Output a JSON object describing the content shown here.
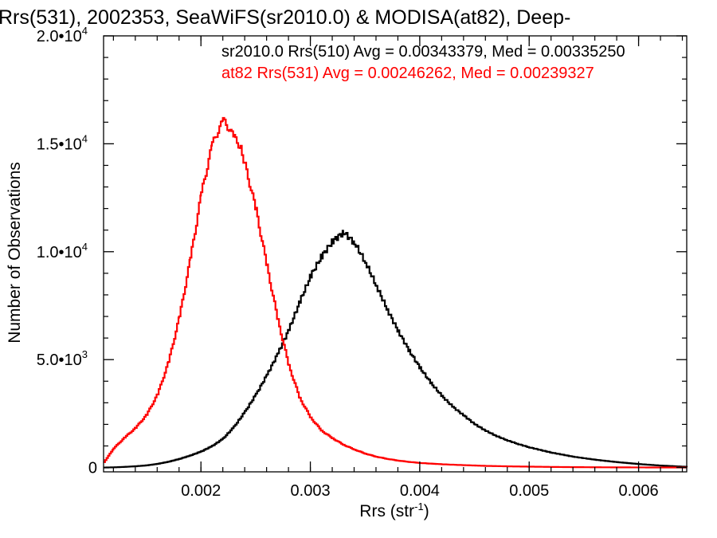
{
  "chart_data": {
    "type": "line",
    "title": "Rrs(531), 2002353, SeaWiFS(sr2010.0) & MODISA(at82), Deep-",
    "xlabel": "Rrs (str",
    "xlabel_sup": "-1",
    "xlabel_suffix": ")",
    "ylabel": "Number of Observations",
    "xlim": [
      0.00111,
      0.00644
    ],
    "ylim": [
      -200,
      20000
    ],
    "x_ticks": [
      {
        "value": 0.002,
        "label": "0.002"
      },
      {
        "value": 0.003,
        "label": "0.003"
      },
      {
        "value": 0.004,
        "label": "0.004"
      },
      {
        "value": 0.005,
        "label": "0.005"
      },
      {
        "value": 0.006,
        "label": "0.006"
      }
    ],
    "y_ticks": [
      {
        "value": 0,
        "base": "0",
        "exp": ""
      },
      {
        "value": 5000,
        "base": "5.0•10",
        "exp": "3"
      },
      {
        "value": 10000,
        "base": "1.0•10",
        "exp": "4"
      },
      {
        "value": 15000,
        "base": "1.5•10",
        "exp": "4"
      },
      {
        "value": 20000,
        "base": "2.0•10",
        "exp": "4"
      }
    ],
    "annotations": [
      {
        "text": "sr2010.0 Rrs(510) Avg = 0.00343379, Med = 0.00335250",
        "color": "#000000"
      },
      {
        "text": "at82 Rrs(531) Avg = 0.00246262, Med = 0.00239327",
        "color": "#ff0000"
      }
    ],
    "series": [
      {
        "color": "#000000",
        "x": [
          0.00111,
          0.0012,
          0.0013,
          0.0014,
          0.0015,
          0.0016,
          0.0017,
          0.0018,
          0.0019,
          0.002,
          0.0021,
          0.0022,
          0.0023,
          0.0024,
          0.0025,
          0.0026,
          0.0027,
          0.0028,
          0.0029,
          0.003,
          0.0031,
          0.0032,
          0.0033,
          0.0034,
          0.0035,
          0.0036,
          0.0037,
          0.0038,
          0.0039,
          0.004,
          0.0041,
          0.0042,
          0.0043,
          0.0044,
          0.0045,
          0.0046,
          0.0047,
          0.0048,
          0.0049,
          0.005,
          0.0052,
          0.0054,
          0.0056,
          0.0058,
          0.006,
          0.0062,
          0.00644
        ],
        "values": [
          0,
          10,
          30,
          60,
          100,
          170,
          270,
          400,
          560,
          750,
          1000,
          1350,
          1900,
          2600,
          3400,
          4300,
          5300,
          6400,
          7700,
          8900,
          9800,
          10500,
          10900,
          10400,
          9500,
          8400,
          7300,
          6300,
          5400,
          4600,
          3900,
          3300,
          2800,
          2400,
          2000,
          1700,
          1450,
          1250,
          1080,
          930,
          690,
          500,
          360,
          250,
          160,
          90,
          30
        ]
      },
      {
        "color": "#ff0000",
        "x": [
          0.00111,
          0.0012,
          0.0013,
          0.0014,
          0.0015,
          0.0016,
          0.0017,
          0.0018,
          0.0019,
          0.002,
          0.0021,
          0.0022,
          0.0023,
          0.00236,
          0.0024,
          0.0025,
          0.0026,
          0.0027,
          0.0028,
          0.0029,
          0.003,
          0.0031,
          0.0032,
          0.0033,
          0.0034,
          0.0035,
          0.0036,
          0.0037,
          0.0038,
          0.0039,
          0.004,
          0.0042,
          0.0044,
          0.0046,
          0.0048,
          0.005,
          0.0052,
          0.0054,
          0.0056,
          0.0058,
          0.006,
          0.0062,
          0.00644
        ],
        "values": [
          250,
          900,
          1400,
          1850,
          2450,
          3400,
          4900,
          7000,
          9700,
          12700,
          15000,
          16100,
          15300,
          14800,
          14000,
          11900,
          9300,
          6800,
          4700,
          3200,
          2300,
          1700,
          1350,
          1050,
          830,
          640,
          500,
          400,
          320,
          260,
          210,
          150,
          110,
          75,
          55,
          40,
          28,
          18,
          12,
          8,
          5,
          3,
          1
        ]
      }
    ]
  }
}
